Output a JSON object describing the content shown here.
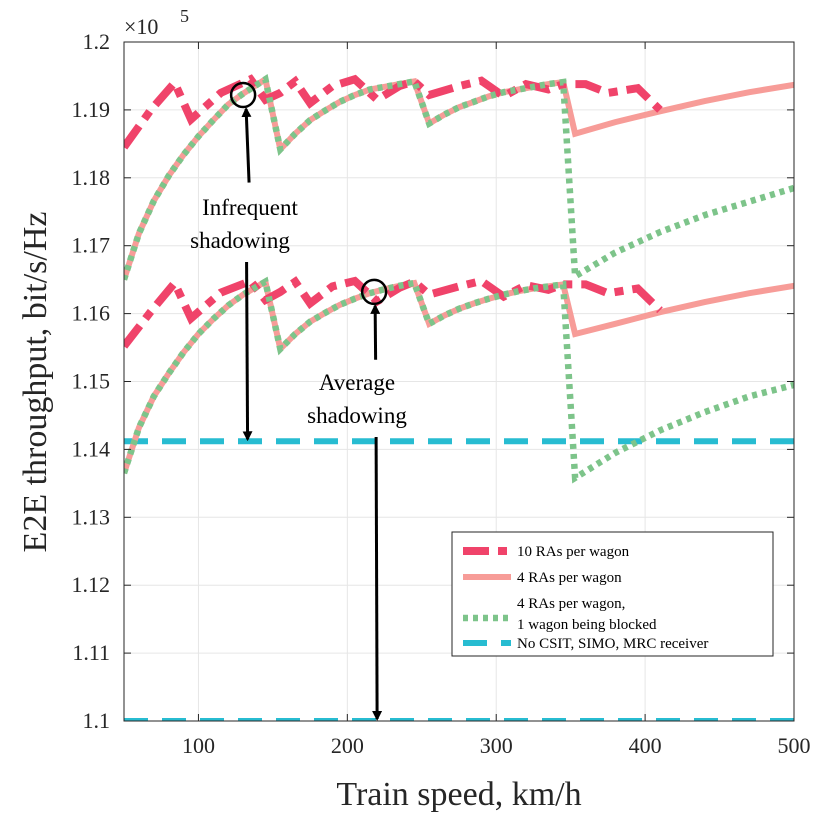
{
  "chart_data": {
    "type": "line",
    "xlabel": "Train speed, km/h",
    "ylabel": "E2E throughput, bit/s/Hz",
    "xlim": [
      50,
      500
    ],
    "ylim": [
      1.1,
      1.2
    ],
    "x_ticks": [
      100,
      200,
      300,
      400,
      500
    ],
    "y_ticks": [
      1.1,
      1.11,
      1.12,
      1.13,
      1.14,
      1.15,
      1.16,
      1.17,
      1.18,
      1.19,
      1.2
    ],
    "y_tick_labels": [
      "1.1",
      "1.11",
      "1.12",
      "1.13",
      "1.14",
      "1.15",
      "1.16",
      "1.17",
      "1.18",
      "1.19",
      "1.2"
    ],
    "exponent": {
      "base": "×10",
      "power": "5"
    },
    "grid": true,
    "legend_position": "bottom-right",
    "series": [
      {
        "name": "10 RAs per wagon",
        "key": "ra10",
        "color": "#f0436a",
        "style": "dashdot",
        "group": "Infrequent shadowing",
        "x": [
          50,
          68,
          84,
          95,
          115,
          135,
          145,
          155,
          165,
          175,
          190,
          205,
          220,
          235,
          245,
          255,
          275,
          290,
          305,
          320,
          335,
          345,
          360,
          375,
          395,
          410
        ],
        "y": [
          1.1845,
          1.19,
          1.194,
          1.1886,
          1.1925,
          1.1945,
          1.1915,
          1.1925,
          1.1942,
          1.191,
          1.1935,
          1.1945,
          1.1915,
          1.1935,
          1.1942,
          1.1922,
          1.1935,
          1.1943,
          1.192,
          1.1938,
          1.193,
          1.1938,
          1.1938,
          1.1925,
          1.1932,
          1.19
        ]
      },
      {
        "name": "4 RAs per wagon",
        "key": "ra4",
        "color": "#f79c98",
        "style": "solid",
        "group": "Infrequent shadowing",
        "x": [
          50,
          60,
          70,
          80,
          90,
          100,
          110,
          120,
          130,
          145,
          155,
          165,
          175,
          185,
          195,
          205,
          215,
          225,
          235,
          245,
          255,
          265,
          275,
          285,
          295,
          305,
          315,
          325,
          335,
          345,
          353,
          380,
          410,
          440,
          470,
          500
        ],
        "y": [
          1.165,
          1.1718,
          1.1766,
          1.1803,
          1.1834,
          1.1861,
          1.1885,
          1.1908,
          1.1924,
          1.1945,
          1.1842,
          1.1865,
          1.1885,
          1.1899,
          1.1912,
          1.1922,
          1.193,
          1.1934,
          1.1938,
          1.1942,
          1.188,
          1.1893,
          1.1904,
          1.1912,
          1.192,
          1.1926,
          1.193,
          1.1934,
          1.1938,
          1.1941,
          1.1865,
          1.1882,
          1.1898,
          1.1913,
          1.1926,
          1.1937
        ]
      },
      {
        "name": "4 RAs per wagon,\n1 wagon being blocked",
        "key": "ra4blocked",
        "color": "#7dc48a",
        "style": "dotted",
        "group": "Infrequent shadowing",
        "x": [
          50,
          60,
          70,
          80,
          90,
          100,
          110,
          120,
          130,
          145,
          155,
          165,
          175,
          185,
          195,
          205,
          215,
          225,
          235,
          245,
          255,
          265,
          275,
          285,
          295,
          305,
          315,
          325,
          335,
          345,
          353,
          380,
          410,
          440,
          470,
          500
        ],
        "y": [
          1.165,
          1.1718,
          1.1766,
          1.1803,
          1.1834,
          1.1861,
          1.1885,
          1.1908,
          1.1924,
          1.1945,
          1.1842,
          1.1865,
          1.1885,
          1.1899,
          1.1912,
          1.1922,
          1.193,
          1.1934,
          1.1938,
          1.1942,
          1.188,
          1.1893,
          1.1904,
          1.1912,
          1.192,
          1.1926,
          1.193,
          1.1934,
          1.1938,
          1.1941,
          1.1655,
          1.169,
          1.172,
          1.1745,
          1.1765,
          1.1785
        ]
      },
      {
        "name": "10 RAs per wagon",
        "key": "ra10",
        "color": "#f0436a",
        "style": "dashdot",
        "group": "Average shadowing",
        "legend": false,
        "x": [
          50,
          68,
          84,
          95,
          115,
          135,
          145,
          155,
          165,
          175,
          190,
          205,
          220,
          235,
          245,
          255,
          275,
          290,
          305,
          320,
          335,
          345,
          360,
          375,
          395,
          410
        ],
        "y": [
          1.1552,
          1.1603,
          1.1645,
          1.1593,
          1.1631,
          1.1648,
          1.162,
          1.1632,
          1.1647,
          1.1615,
          1.164,
          1.1648,
          1.1618,
          1.1638,
          1.1647,
          1.1628,
          1.164,
          1.1648,
          1.1625,
          1.1642,
          1.1635,
          1.1643,
          1.1643,
          1.163,
          1.1637,
          1.1605
        ]
      },
      {
        "name": "4 RAs per wagon",
        "key": "ra4",
        "color": "#f79c98",
        "style": "solid",
        "group": "Average shadowing",
        "legend": false,
        "x": [
          50,
          60,
          70,
          80,
          90,
          100,
          110,
          120,
          130,
          145,
          155,
          165,
          175,
          185,
          195,
          205,
          215,
          225,
          235,
          245,
          255,
          265,
          275,
          285,
          295,
          305,
          315,
          325,
          335,
          345,
          353,
          380,
          410,
          440,
          470,
          500
        ],
        "y": [
          1.1365,
          1.1432,
          1.1478,
          1.1512,
          1.1543,
          1.157,
          1.1592,
          1.1612,
          1.1628,
          1.1647,
          1.1548,
          1.157,
          1.1588,
          1.1601,
          1.1613,
          1.1622,
          1.163,
          1.1636,
          1.1641,
          1.1645,
          1.1585,
          1.1597,
          1.1607,
          1.1615,
          1.1622,
          1.1628,
          1.1633,
          1.1637,
          1.164,
          1.1643,
          1.157,
          1.1585,
          1.1602,
          1.1617,
          1.163,
          1.1641
        ]
      },
      {
        "name": "4 RAs per wagon,\n1 wagon being blocked",
        "key": "ra4blocked",
        "color": "#7dc48a",
        "style": "dotted",
        "group": "Average shadowing",
        "legend": false,
        "x": [
          50,
          60,
          70,
          80,
          90,
          100,
          110,
          120,
          130,
          145,
          155,
          165,
          175,
          185,
          195,
          205,
          215,
          225,
          235,
          245,
          255,
          265,
          275,
          285,
          295,
          305,
          315,
          325,
          335,
          345,
          353,
          380,
          410,
          440,
          470,
          500
        ],
        "y": [
          1.1365,
          1.1432,
          1.1478,
          1.1512,
          1.1543,
          1.157,
          1.1592,
          1.1612,
          1.1628,
          1.1647,
          1.1548,
          1.157,
          1.1588,
          1.1601,
          1.1613,
          1.1622,
          1.163,
          1.1636,
          1.1641,
          1.1645,
          1.1585,
          1.1597,
          1.1607,
          1.1615,
          1.1622,
          1.1628,
          1.1633,
          1.1637,
          1.164,
          1.1643,
          1.1358,
          1.1395,
          1.1428,
          1.1455,
          1.1478,
          1.1495
        ]
      },
      {
        "name": "No CSIT, SIMO, MRC receiver",
        "key": "nocsit",
        "color": "#27bcd1",
        "style": "dashed",
        "group": "Infrequent shadowing",
        "x": [
          50,
          500
        ],
        "y": [
          1.1412,
          1.1412
        ]
      },
      {
        "name": "No CSIT, SIMO, MRC receiver",
        "key": "nocsit",
        "color": "#27bcd1",
        "style": "dashed",
        "group": "Average shadowing",
        "legend": false,
        "x": [
          50,
          500
        ],
        "y": [
          1.1,
          1.1
        ]
      }
    ],
    "annotations": [
      {
        "label_lines": [
          "Infrequent",
          "shadowing"
        ],
        "circle": {
          "x": 130,
          "y": 1.1922
        },
        "arrow_from": {
          "x": 134,
          "y": 1.1793
        },
        "arrow_to": {
          "x": 133,
          "y": 1.1412
        }
      },
      {
        "label_lines": [
          "Average",
          "shadowing"
        ],
        "circle": {
          "x": 218,
          "y": 1.1632
        },
        "arrow_from": {
          "x": 219,
          "y": 1.1532
        },
        "arrow_to": {
          "x": 220,
          "y": 1.1
        }
      }
    ]
  }
}
